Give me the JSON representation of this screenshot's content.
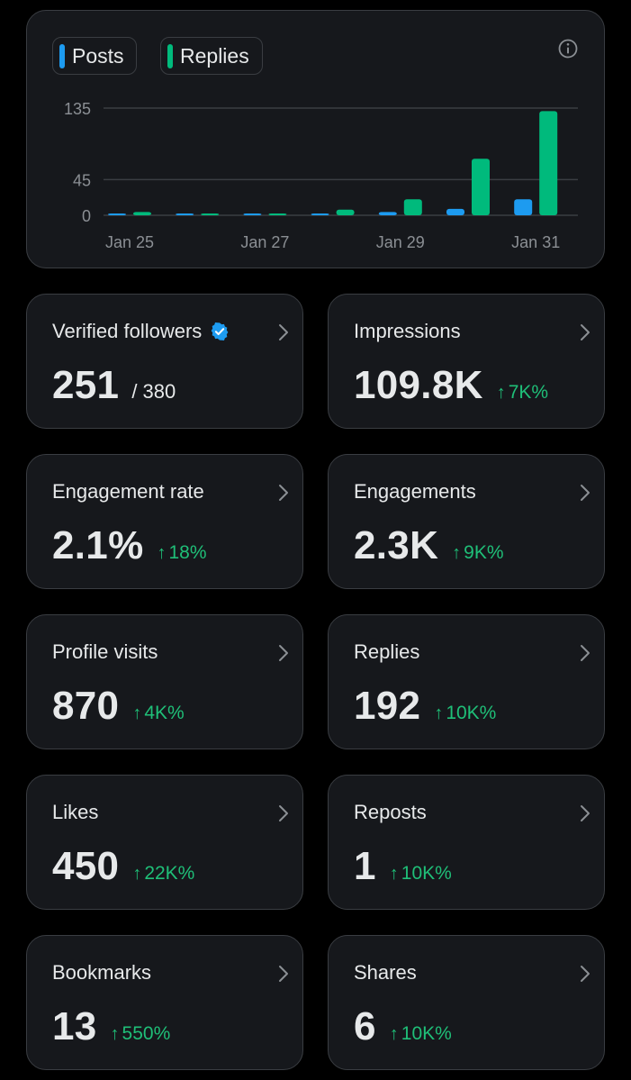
{
  "colors": {
    "posts": "#1d9bf0",
    "replies": "#00ba7c",
    "positive_change": "#1fbf78",
    "card_bg": "#16181c",
    "card_border": "#3a3d42"
  },
  "legend": {
    "posts": "Posts",
    "replies": "Replies"
  },
  "chart_data": {
    "type": "bar",
    "categories": [
      "Jan 25",
      "Jan 26",
      "Jan 27",
      "Jan 28",
      "Jan 29",
      "Jan 30",
      "Jan 31"
    ],
    "x_tick_labels": [
      "Jan 25",
      "Jan 27",
      "Jan 29",
      "Jan 31"
    ],
    "y_ticks": [
      0,
      45,
      135
    ],
    "ylim": [
      0,
      135
    ],
    "grid": true,
    "series": [
      {
        "name": "Posts",
        "values": [
          0,
          1,
          0,
          1,
          3,
          7,
          19
        ]
      },
      {
        "name": "Replies",
        "values": [
          3,
          1,
          0,
          6,
          19,
          70,
          130
        ]
      }
    ]
  },
  "stats": [
    {
      "label": "Verified followers",
      "value": "251",
      "total": "/ 380",
      "change": "",
      "verified": true
    },
    {
      "label": "Impressions",
      "value": "109.8K",
      "total": "",
      "change": "7K%"
    },
    {
      "label": "Engagement rate",
      "value": "2.1%",
      "total": "",
      "change": "18%"
    },
    {
      "label": "Engagements",
      "value": "2.3K",
      "total": "",
      "change": "9K%"
    },
    {
      "label": "Profile visits",
      "value": "870",
      "total": "",
      "change": "4K%"
    },
    {
      "label": "Replies",
      "value": "192",
      "total": "",
      "change": "10K%"
    },
    {
      "label": "Likes",
      "value": "450",
      "total": "",
      "change": "22K%"
    },
    {
      "label": "Reposts",
      "value": "1",
      "total": "",
      "change": "10K%"
    },
    {
      "label": "Bookmarks",
      "value": "13",
      "total": "",
      "change": "550%"
    },
    {
      "label": "Shares",
      "value": "6",
      "total": "",
      "change": "10K%"
    }
  ]
}
